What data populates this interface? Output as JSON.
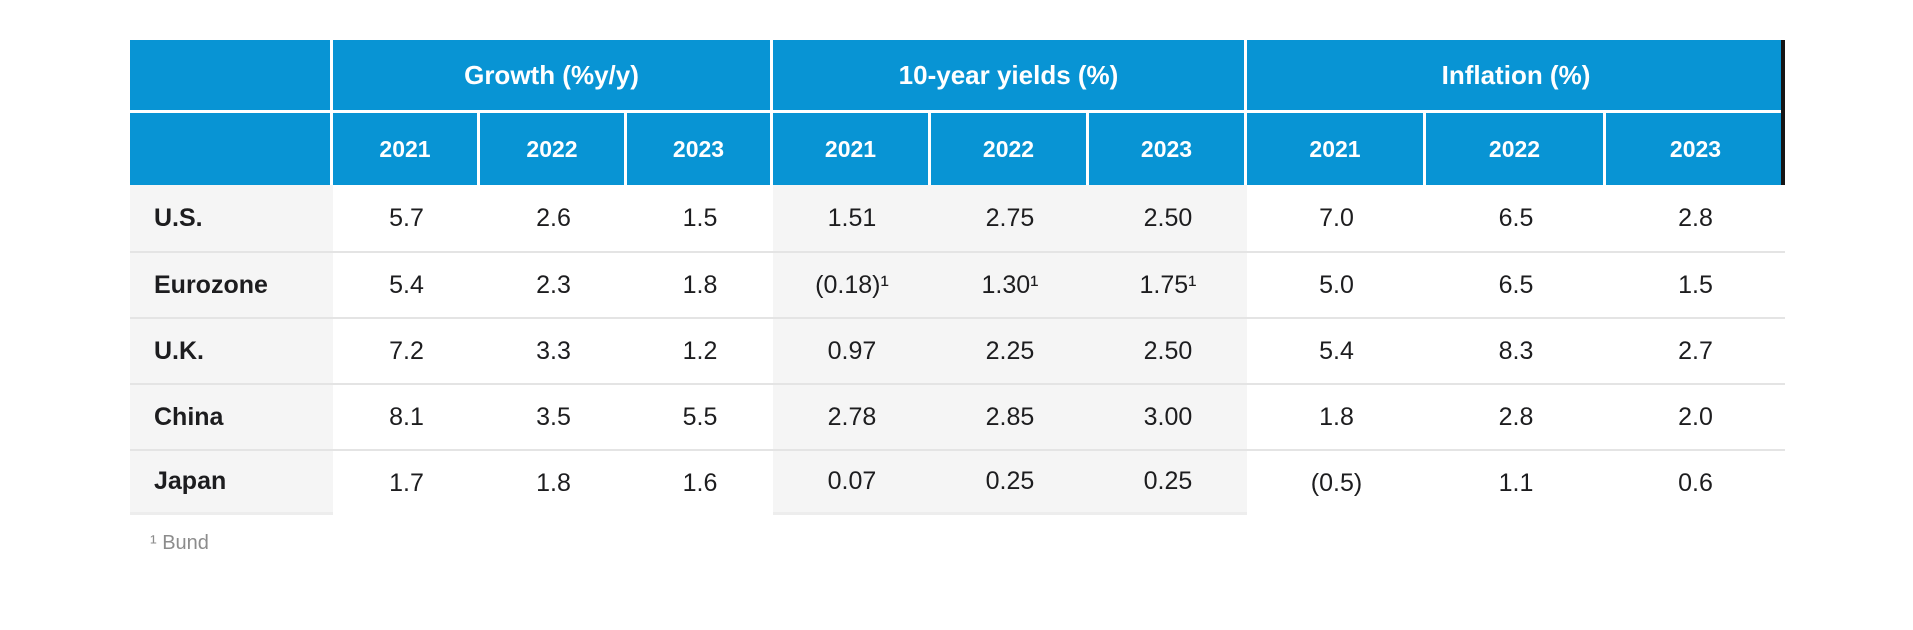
{
  "colors": {
    "header_blue": "#0894d4",
    "shaded_column_bg": "#f5f5f5",
    "row_divider": "#e4e4e4",
    "footnote_gray": "#8c8c8c",
    "header_right_edge": "#151515"
  },
  "chart_data": {
    "type": "table",
    "column_groups": [
      "Growth (%y/y)",
      "10-year yields (%)",
      "Inflation (%)"
    ],
    "years": [
      "2021",
      "2022",
      "2023"
    ],
    "rows": [
      {
        "label": "U.S.",
        "growth": [
          "5.7",
          "2.6",
          "1.5"
        ],
        "yields": [
          "1.51",
          "2.75",
          "2.50"
        ],
        "inflation": [
          "7.0",
          "6.5",
          "2.8"
        ]
      },
      {
        "label": "Eurozone",
        "growth": [
          "5.4",
          "2.3",
          "1.8"
        ],
        "yields": [
          "(0.18)¹",
          "1.30¹",
          "1.75¹"
        ],
        "inflation": [
          "5.0",
          "6.5",
          "1.5"
        ]
      },
      {
        "label": "U.K.",
        "growth": [
          "7.2",
          "3.3",
          "1.2"
        ],
        "yields": [
          "0.97",
          "2.25",
          "2.50"
        ],
        "inflation": [
          "5.4",
          "8.3",
          "2.7"
        ]
      },
      {
        "label": "China",
        "growth": [
          "8.1",
          "3.5",
          "5.5"
        ],
        "yields": [
          "2.78",
          "2.85",
          "3.00"
        ],
        "inflation": [
          "1.8",
          "2.8",
          "2.0"
        ]
      },
      {
        "label": "Japan",
        "growth": [
          "1.7",
          "1.8",
          "1.6"
        ],
        "yields": [
          "0.07",
          "0.25",
          "0.25"
        ],
        "inflation": [
          "(0.5)",
          "1.1",
          "0.6"
        ]
      }
    ],
    "footnote": "¹ Bund"
  }
}
